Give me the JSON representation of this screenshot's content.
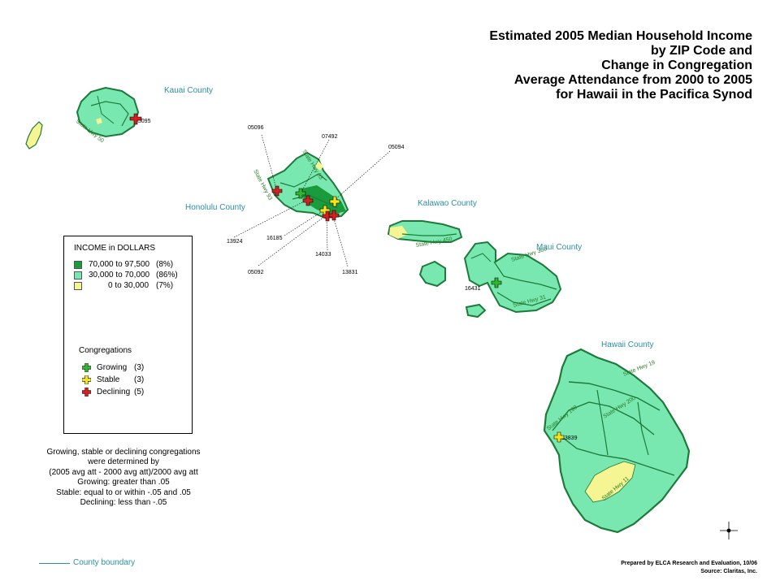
{
  "title": {
    "lines": [
      "Estimated 2005 Median Household Income",
      "by ZIP Code and",
      "Change in Congregation",
      "Average Attendance from 2000 to 2005",
      "for Hawaii in the Pacifica Synod"
    ]
  },
  "counties": {
    "kauai": "Kauai County",
    "honolulu": "Honolulu County",
    "kalawao": "Kalawao County",
    "maui": "Maui County",
    "hawaii": "Hawaii County"
  },
  "highways": {
    "hwy50": "State Hwy 50",
    "hwy83": "State Hwy 83",
    "hwy93": "State Hwy 93",
    "hwy450": "State Hwy 450",
    "hwy360": "State Hwy 360",
    "hwy31": "State Hwy 31",
    "hwy19": "State Hwy 19",
    "hwy190": "State Hwy 190",
    "hwy200": "State Hwy 200",
    "hwy11": "State Hwy 11"
  },
  "zips": {
    "z05095": "05095",
    "z05096": "05096",
    "z07492": "07492",
    "z05094": "05094",
    "z13924": "13924",
    "z16185": "16185",
    "z05092": "05092",
    "z14033": "14033",
    "z13831": "13831",
    "z16431": "16431",
    "z13839": "13839"
  },
  "legend": {
    "title": "INCOME in DOLLARS",
    "income": [
      {
        "label": "70,000 to 97,500",
        "pct": "(8%)",
        "color": "#1a9b3c"
      },
      {
        "label": "30,000 to 70,000",
        "pct": "(86%)",
        "color": "#79e8b0"
      },
      {
        "label": "0 to 30,000",
        "pct": "(7%)",
        "color": "#f5f593"
      }
    ],
    "congregations_title": "Congregations",
    "congregations": [
      {
        "label": "Growing",
        "count": "(3)",
        "color": "#2fb82f",
        "icon": "green-cross-icon"
      },
      {
        "label": "Stable",
        "count": "(3)",
        "color": "#f5e51a",
        "icon": "yellow-cross-icon"
      },
      {
        "label": "Declining",
        "count": "(5)",
        "color": "#d81e1e",
        "icon": "red-cross-icon"
      }
    ]
  },
  "note": {
    "lines": [
      "Growing, stable or declining congregations",
      "were determined by",
      "(2005 avg att - 2000 avg att)/2000 avg att",
      "Growing: greater than .05",
      "Stable: equal to or within -.05 and .05",
      "Declining: less than -.05"
    ]
  },
  "boundary": {
    "label": "County boundary"
  },
  "credits": {
    "prepared": "Prepared by  ELCA Research and Evaluation, 10/06",
    "source": "Source: Claritas, Inc."
  },
  "colors": {
    "mid_income": "#79e8b0",
    "high_income": "#1a9b3c",
    "low_income": "#f5f593",
    "road": "#1e7a3a",
    "county_label": "#2a8fa6"
  }
}
